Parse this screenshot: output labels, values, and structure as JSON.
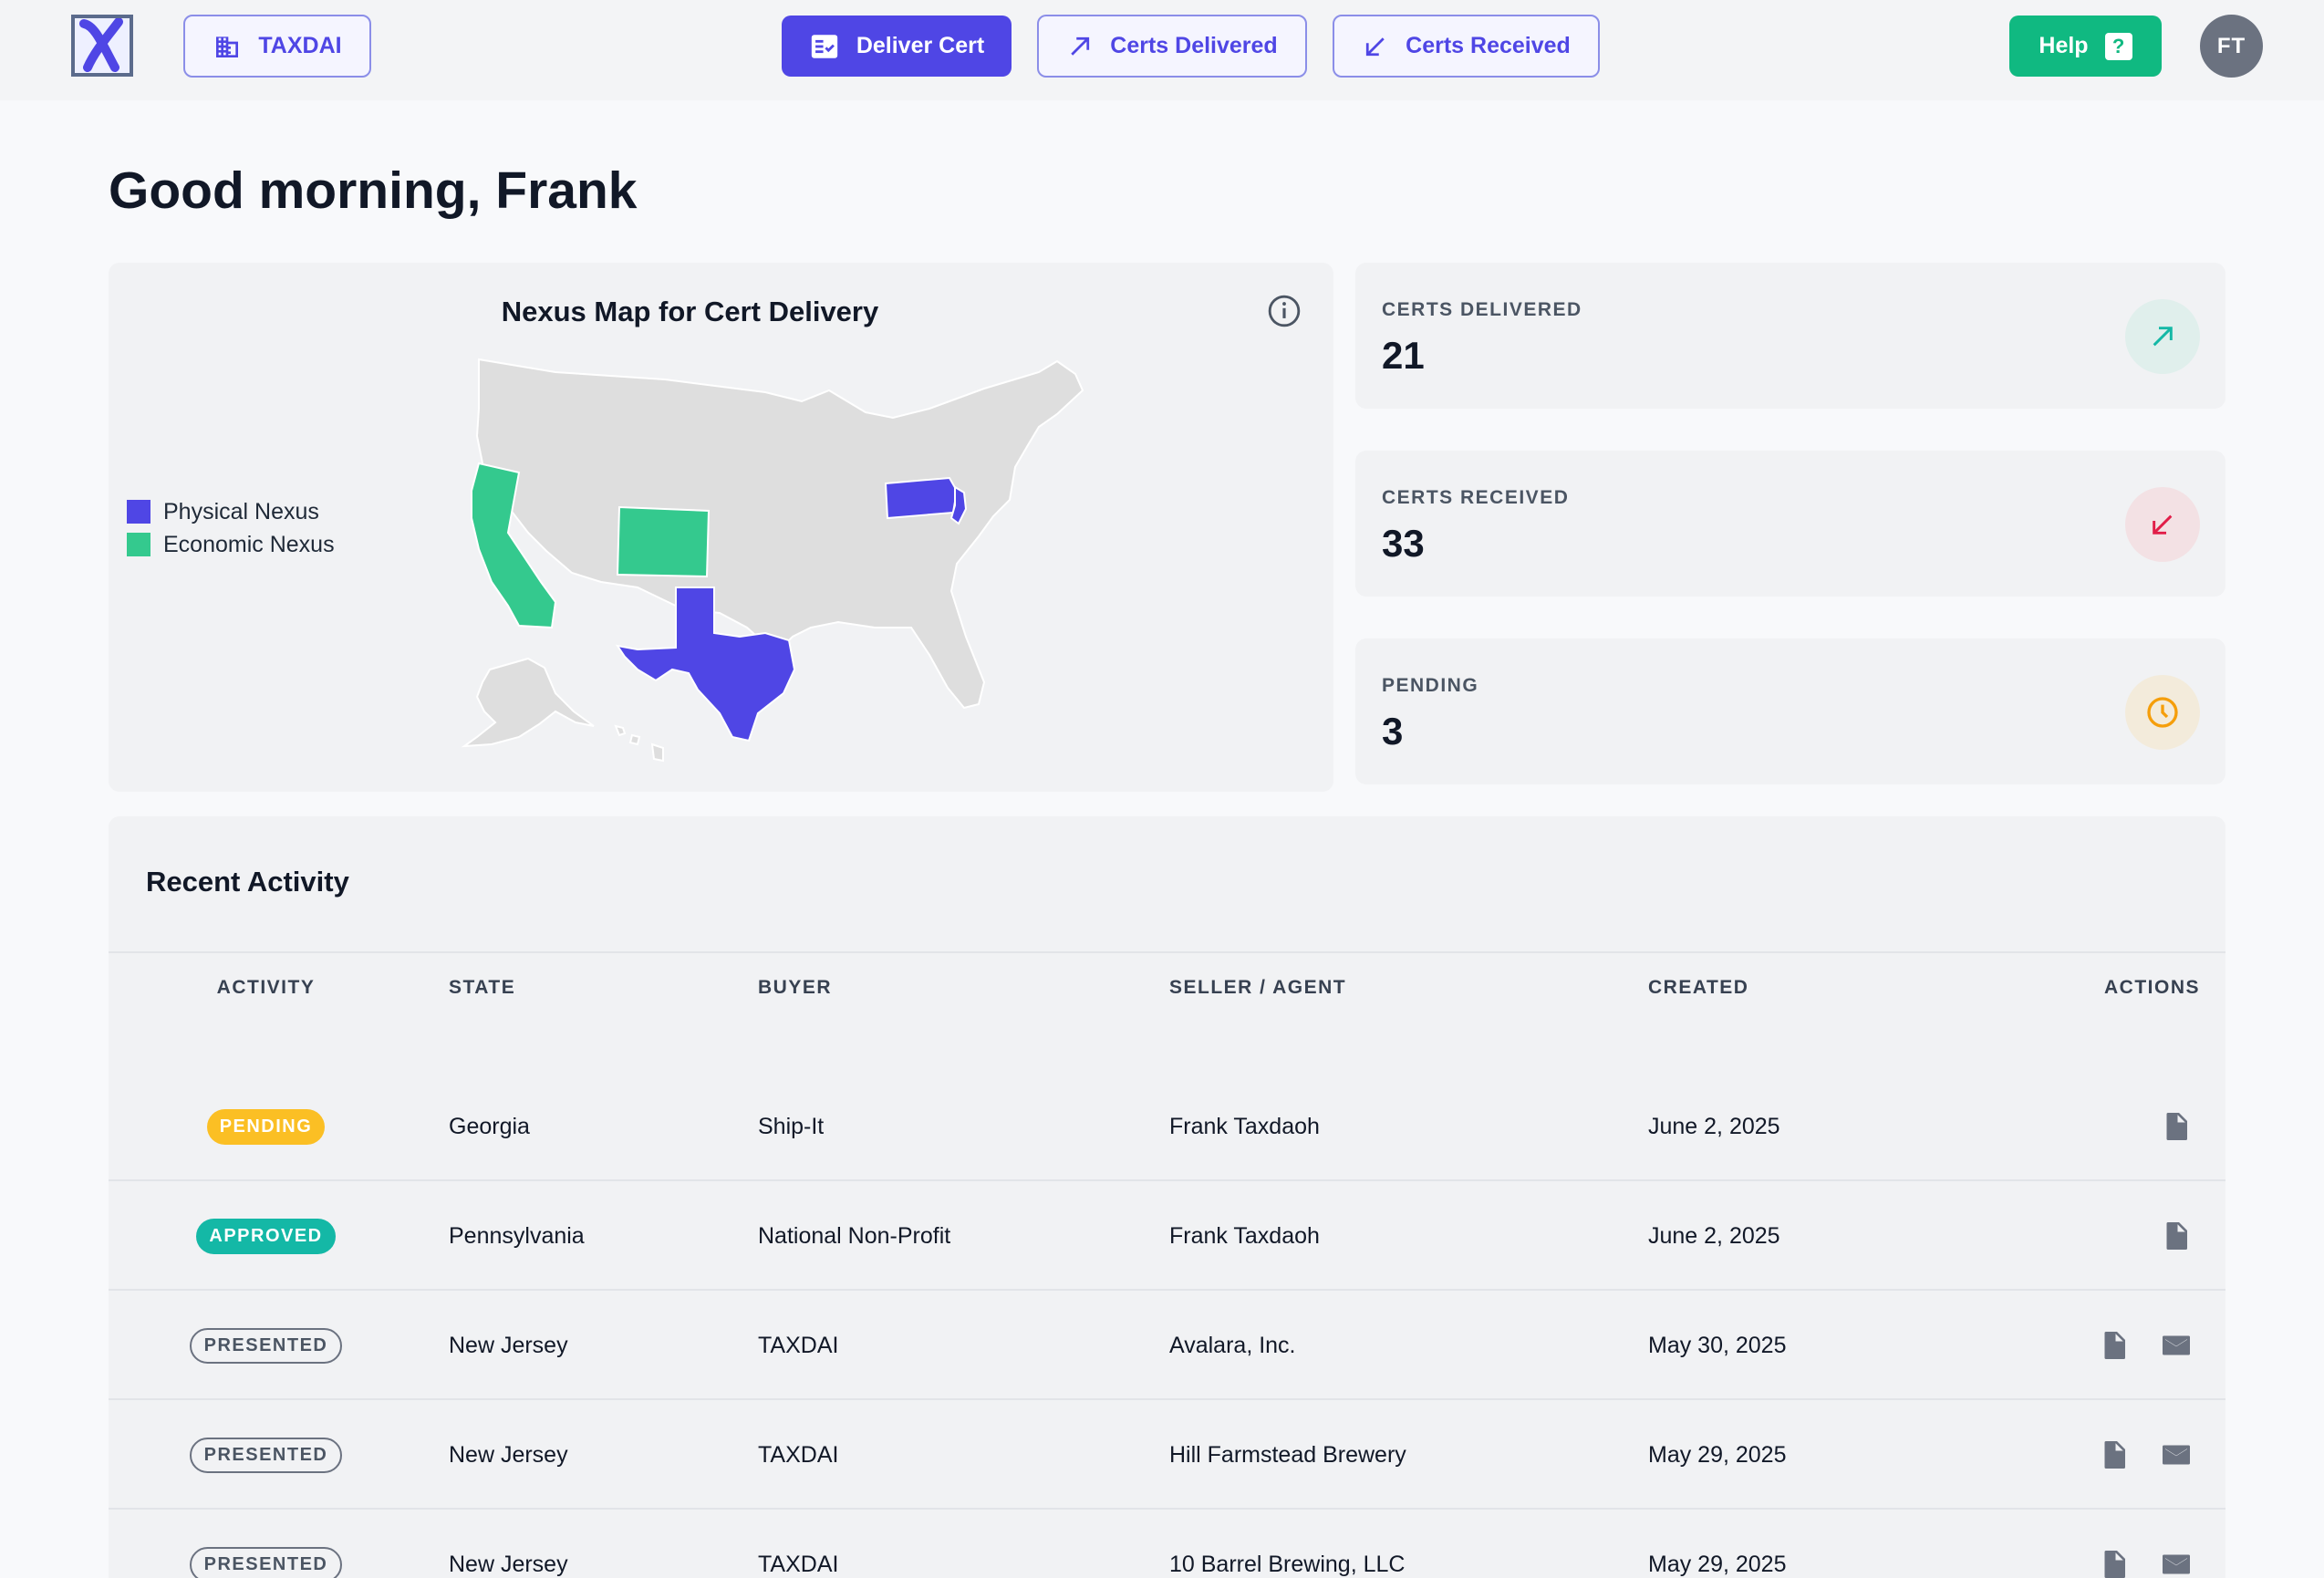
{
  "header": {
    "org_label": "TAXDAI",
    "deliver_label": "Deliver Cert",
    "delivered_label": "Certs Delivered",
    "received_label": "Certs Received",
    "help_label": "Help",
    "help_glyph": "?",
    "avatar_initials": "FT"
  },
  "greeting": "Good morning, Frank",
  "map": {
    "title": "Nexus Map for Cert Delivery",
    "legend": [
      {
        "label": "Physical Nexus",
        "color": "#4f46e5"
      },
      {
        "label": "Economic Nexus",
        "color": "#34c98e"
      }
    ],
    "physical_states": [
      "Texas",
      "Pennsylvania",
      "New Jersey"
    ],
    "economic_states": [
      "California",
      "Colorado"
    ]
  },
  "stats": [
    {
      "label": "CERTS DELIVERED",
      "value": "21",
      "icon": "arrow-up-right-icon",
      "color": "#14b8a6"
    },
    {
      "label": "CERTS RECEIVED",
      "value": "33",
      "icon": "arrow-down-left-icon",
      "color": "#e11d48"
    },
    {
      "label": "PENDING",
      "value": "3",
      "icon": "clock-icon",
      "color": "#f59e0b"
    }
  ],
  "activity": {
    "title": "Recent Activity",
    "columns": [
      "ACTIVITY",
      "STATE",
      "BUYER",
      "SELLER / AGENT",
      "CREATED",
      "ACTIONS"
    ],
    "rows": [
      {
        "status": "PENDING",
        "state": "Georgia",
        "buyer": "Ship-It",
        "seller": "Frank Taxdaoh",
        "created": "June 2, 2025",
        "actions": [
          "document-icon"
        ]
      },
      {
        "status": "APPROVED",
        "state": "Pennsylvania",
        "buyer": "National Non-Profit",
        "seller": "Frank Taxdaoh",
        "created": "June 2, 2025",
        "actions": [
          "document-icon"
        ]
      },
      {
        "status": "PRESENTED",
        "state": "New Jersey",
        "buyer": "TAXDAI",
        "seller": "Avalara, Inc.",
        "created": "May 30, 2025",
        "actions": [
          "document-icon",
          "mail-icon"
        ]
      },
      {
        "status": "PRESENTED",
        "state": "New Jersey",
        "buyer": "TAXDAI",
        "seller": "Hill Farmstead Brewery",
        "created": "May 29, 2025",
        "actions": [
          "document-icon",
          "mail-icon"
        ]
      },
      {
        "status": "PRESENTED",
        "state": "New Jersey",
        "buyer": "TAXDAI",
        "seller": "10 Barrel Brewing, LLC",
        "created": "May 29, 2025",
        "actions": [
          "document-icon",
          "mail-icon"
        ]
      }
    ]
  }
}
